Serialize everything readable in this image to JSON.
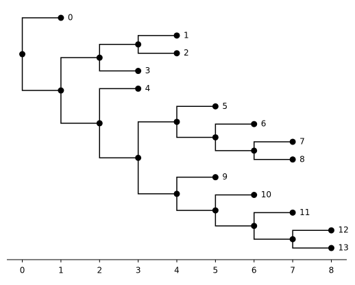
{
  "chart_data": {
    "type": "tree",
    "color": "#000000",
    "xlim": [
      -0.4,
      8.4
    ],
    "xticks": [
      0,
      1,
      2,
      3,
      4,
      5,
      6,
      7,
      8
    ],
    "tree": {
      "x": 0,
      "children": [
        {
          "x": 1,
          "label": "0"
        },
        {
          "x": 1,
          "children": [
            {
              "x": 2,
              "children": [
                {
                  "x": 3,
                  "children": [
                    {
                      "x": 4,
                      "label": "1"
                    },
                    {
                      "x": 4,
                      "label": "2"
                    }
                  ]
                },
                {
                  "x": 3,
                  "label": "3"
                }
              ]
            },
            {
              "x": 2,
              "children": [
                {
                  "x": 3,
                  "label": "4"
                },
                {
                  "x": 3,
                  "children": [
                    {
                      "x": 4,
                      "children": [
                        {
                          "x": 5,
                          "label": "5"
                        },
                        {
                          "x": 5,
                          "children": [
                            {
                              "x": 6,
                              "label": "6"
                            },
                            {
                              "x": 6,
                              "children": [
                                {
                                  "x": 7,
                                  "label": "7"
                                },
                                {
                                  "x": 7,
                                  "label": "8"
                                }
                              ]
                            }
                          ]
                        }
                      ]
                    },
                    {
                      "x": 4,
                      "children": [
                        {
                          "x": 5,
                          "label": "9"
                        },
                        {
                          "x": 5,
                          "children": [
                            {
                              "x": 6,
                              "label": "10"
                            },
                            {
                              "x": 6,
                              "children": [
                                {
                                  "x": 7,
                                  "label": "11"
                                },
                                {
                                  "x": 7,
                                  "children": [
                                    {
                                      "x": 8,
                                      "label": "12"
                                    },
                                    {
                                      "x": 8,
                                      "label": "13"
                                    }
                                  ]
                                }
                              ]
                            }
                          ]
                        }
                      ]
                    }
                  ]
                }
              ]
            }
          ]
        }
      ]
    }
  }
}
